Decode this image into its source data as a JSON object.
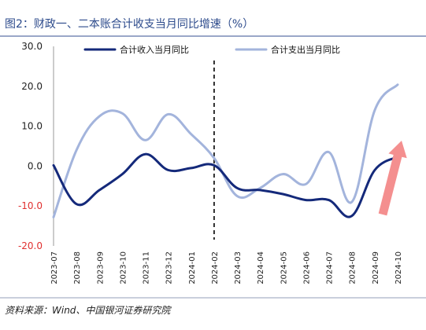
{
  "title": "图2：财政一、二本账合计收支当月同比增速（%）",
  "source": "资料来源：Wind、中国银河证券研究院",
  "colors": {
    "revenue": "#14297a",
    "expenditure": "#a3b4dc",
    "arrow": "#f48f8f",
    "negative_tick": "#e0302f",
    "title": "#2d4b8c"
  },
  "chart_data": {
    "type": "line",
    "categories": [
      "2023-07",
      "2023-08",
      "2023-09",
      "2023-10",
      "2023-11",
      "2023-12",
      "2024-01",
      "2024-02",
      "2024-03",
      "2024-04",
      "2024-05",
      "2024-06",
      "2024-07",
      "2024-08",
      "2024-09",
      "2024-10"
    ],
    "series": [
      {
        "name": "合计收入当月同比",
        "values": [
          0.2,
          -9.5,
          -6.0,
          -2.0,
          3.0,
          -1.0,
          -0.5,
          0.2,
          -5.5,
          -6.0,
          -7.0,
          -8.5,
          -8.5,
          -12.5,
          -1.0,
          2.3
        ]
      },
      {
        "name": "合计支出当月同比",
        "values": [
          -12.8,
          4.0,
          12.5,
          13.2,
          6.5,
          13.0,
          8.0,
          2.0,
          -7.5,
          -5.5,
          -2.0,
          -4.5,
          3.5,
          -9.0,
          14.0,
          20.4
        ]
      }
    ],
    "ylim": [
      -20,
      30
    ],
    "yticks": [
      "30.0",
      "20.0",
      "10.0",
      "0.0",
      "-10.0",
      "-20.0"
    ],
    "divider_after": "2024-02",
    "annotation": "upward-trend-arrow",
    "legend_position": "top",
    "xlabel": "",
    "ylabel": ""
  }
}
